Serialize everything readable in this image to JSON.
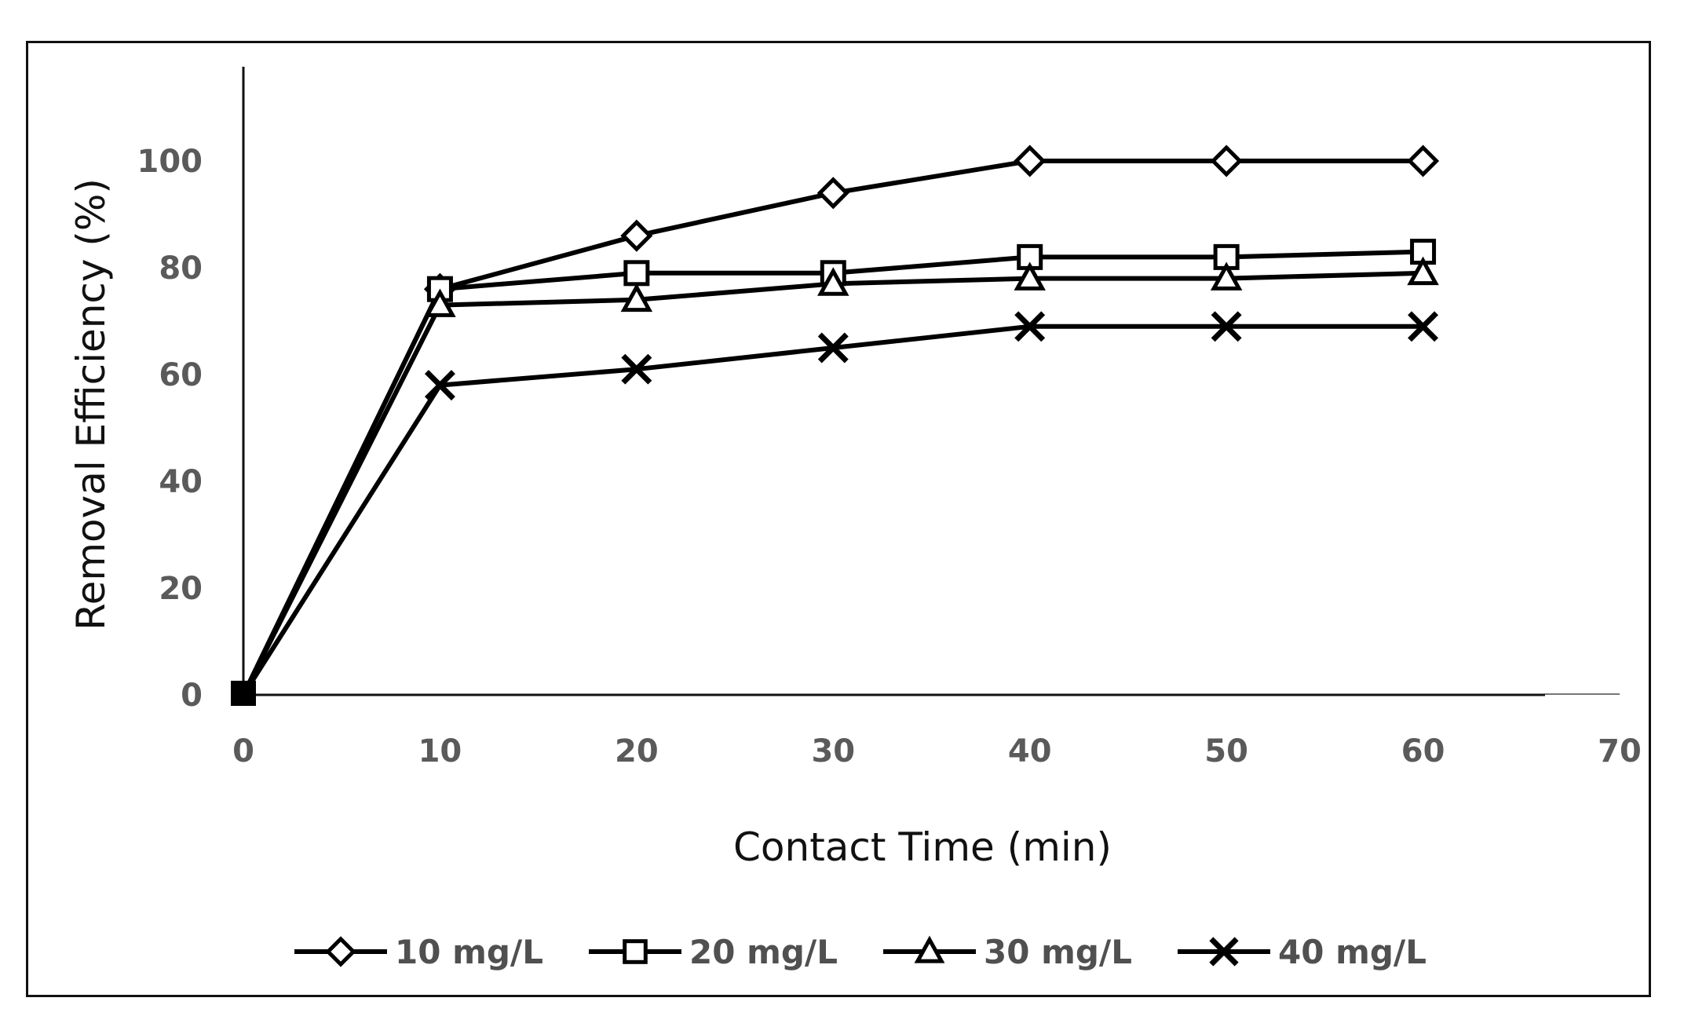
{
  "chart_data": {
    "type": "line",
    "title": "",
    "xlabel": "Contact Time (min)",
    "ylabel": "Removal Efficiency (%)",
    "x": [
      0,
      10,
      20,
      30,
      40,
      50,
      60
    ],
    "xlim": [
      0,
      70
    ],
    "ylim": [
      0,
      120
    ],
    "xticks": [
      0,
      10,
      20,
      30,
      40,
      50,
      60,
      70
    ],
    "yticks": [
      0,
      20,
      40,
      60,
      80,
      100
    ],
    "grid": false,
    "legend_position": "bottom",
    "series": [
      {
        "name": "10 mg/L",
        "marker": "diamond",
        "values": [
          0,
          76,
          86,
          94,
          100,
          100,
          100
        ]
      },
      {
        "name": "20 mg/L",
        "marker": "square",
        "values": [
          0,
          76,
          79,
          79,
          82,
          82,
          83
        ]
      },
      {
        "name": "30 mg/L",
        "marker": "triangle",
        "values": [
          0,
          73,
          74,
          77,
          78,
          78,
          79
        ]
      },
      {
        "name": "40 mg/L",
        "marker": "x",
        "values": [
          0,
          58,
          61,
          65,
          69,
          69,
          69
        ]
      }
    ],
    "colors": {
      "line": "#000000",
      "marker_fill": "#ffffff",
      "tick_text": "#5a5a5a",
      "axis_title": "#111111"
    }
  }
}
